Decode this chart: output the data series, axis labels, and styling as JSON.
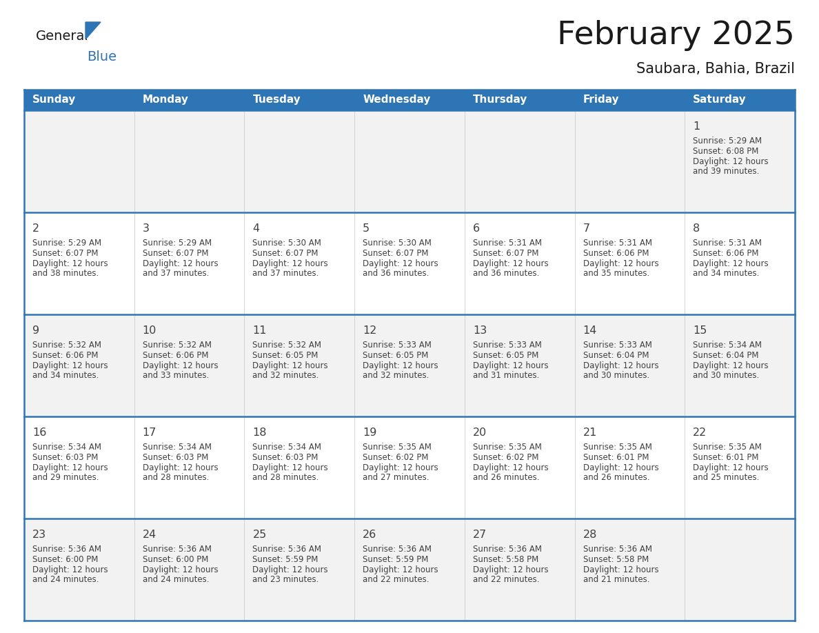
{
  "title": "February 2025",
  "subtitle": "Saubara, Bahia, Brazil",
  "days_of_week": [
    "Sunday",
    "Monday",
    "Tuesday",
    "Wednesday",
    "Thursday",
    "Friday",
    "Saturday"
  ],
  "header_bg_color": "#2E75B6",
  "header_text_color": "#FFFFFF",
  "cell_bg_even": "#F2F2F2",
  "cell_bg_odd": "#FFFFFF",
  "grid_line_color": "#2E75B6",
  "day_number_color": "#404040",
  "info_text_color": "#404040",
  "title_color": "#1a1a1a",
  "logo_general_color": "#1a1a1a",
  "logo_blue_color": "#2E75B6",
  "num_rows": 5,
  "num_cols": 7,
  "calendar_data": [
    [
      null,
      null,
      null,
      null,
      null,
      null,
      {
        "day": 1,
        "sunrise": "5:29 AM",
        "sunset": "6:08 PM",
        "daylight": "12 hours and 39 minutes."
      }
    ],
    [
      {
        "day": 2,
        "sunrise": "5:29 AM",
        "sunset": "6:07 PM",
        "daylight": "12 hours and 38 minutes."
      },
      {
        "day": 3,
        "sunrise": "5:29 AM",
        "sunset": "6:07 PM",
        "daylight": "12 hours and 37 minutes."
      },
      {
        "day": 4,
        "sunrise": "5:30 AM",
        "sunset": "6:07 PM",
        "daylight": "12 hours and 37 minutes."
      },
      {
        "day": 5,
        "sunrise": "5:30 AM",
        "sunset": "6:07 PM",
        "daylight": "12 hours and 36 minutes."
      },
      {
        "day": 6,
        "sunrise": "5:31 AM",
        "sunset": "6:07 PM",
        "daylight": "12 hours and 36 minutes."
      },
      {
        "day": 7,
        "sunrise": "5:31 AM",
        "sunset": "6:06 PM",
        "daylight": "12 hours and 35 minutes."
      },
      {
        "day": 8,
        "sunrise": "5:31 AM",
        "sunset": "6:06 PM",
        "daylight": "12 hours and 34 minutes."
      }
    ],
    [
      {
        "day": 9,
        "sunrise": "5:32 AM",
        "sunset": "6:06 PM",
        "daylight": "12 hours and 34 minutes."
      },
      {
        "day": 10,
        "sunrise": "5:32 AM",
        "sunset": "6:06 PM",
        "daylight": "12 hours and 33 minutes."
      },
      {
        "day": 11,
        "sunrise": "5:32 AM",
        "sunset": "6:05 PM",
        "daylight": "12 hours and 32 minutes."
      },
      {
        "day": 12,
        "sunrise": "5:33 AM",
        "sunset": "6:05 PM",
        "daylight": "12 hours and 32 minutes."
      },
      {
        "day": 13,
        "sunrise": "5:33 AM",
        "sunset": "6:05 PM",
        "daylight": "12 hours and 31 minutes."
      },
      {
        "day": 14,
        "sunrise": "5:33 AM",
        "sunset": "6:04 PM",
        "daylight": "12 hours and 30 minutes."
      },
      {
        "day": 15,
        "sunrise": "5:34 AM",
        "sunset": "6:04 PM",
        "daylight": "12 hours and 30 minutes."
      }
    ],
    [
      {
        "day": 16,
        "sunrise": "5:34 AM",
        "sunset": "6:03 PM",
        "daylight": "12 hours and 29 minutes."
      },
      {
        "day": 17,
        "sunrise": "5:34 AM",
        "sunset": "6:03 PM",
        "daylight": "12 hours and 28 minutes."
      },
      {
        "day": 18,
        "sunrise": "5:34 AM",
        "sunset": "6:03 PM",
        "daylight": "12 hours and 28 minutes."
      },
      {
        "day": 19,
        "sunrise": "5:35 AM",
        "sunset": "6:02 PM",
        "daylight": "12 hours and 27 minutes."
      },
      {
        "day": 20,
        "sunrise": "5:35 AM",
        "sunset": "6:02 PM",
        "daylight": "12 hours and 26 minutes."
      },
      {
        "day": 21,
        "sunrise": "5:35 AM",
        "sunset": "6:01 PM",
        "daylight": "12 hours and 26 minutes."
      },
      {
        "day": 22,
        "sunrise": "5:35 AM",
        "sunset": "6:01 PM",
        "daylight": "12 hours and 25 minutes."
      }
    ],
    [
      {
        "day": 23,
        "sunrise": "5:36 AM",
        "sunset": "6:00 PM",
        "daylight": "12 hours and 24 minutes."
      },
      {
        "day": 24,
        "sunrise": "5:36 AM",
        "sunset": "6:00 PM",
        "daylight": "12 hours and 24 minutes."
      },
      {
        "day": 25,
        "sunrise": "5:36 AM",
        "sunset": "5:59 PM",
        "daylight": "12 hours and 23 minutes."
      },
      {
        "day": 26,
        "sunrise": "5:36 AM",
        "sunset": "5:59 PM",
        "daylight": "12 hours and 22 minutes."
      },
      {
        "day": 27,
        "sunrise": "5:36 AM",
        "sunset": "5:58 PM",
        "daylight": "12 hours and 22 minutes."
      },
      {
        "day": 28,
        "sunrise": "5:36 AM",
        "sunset": "5:58 PM",
        "daylight": "12 hours and 21 minutes."
      },
      null
    ]
  ]
}
